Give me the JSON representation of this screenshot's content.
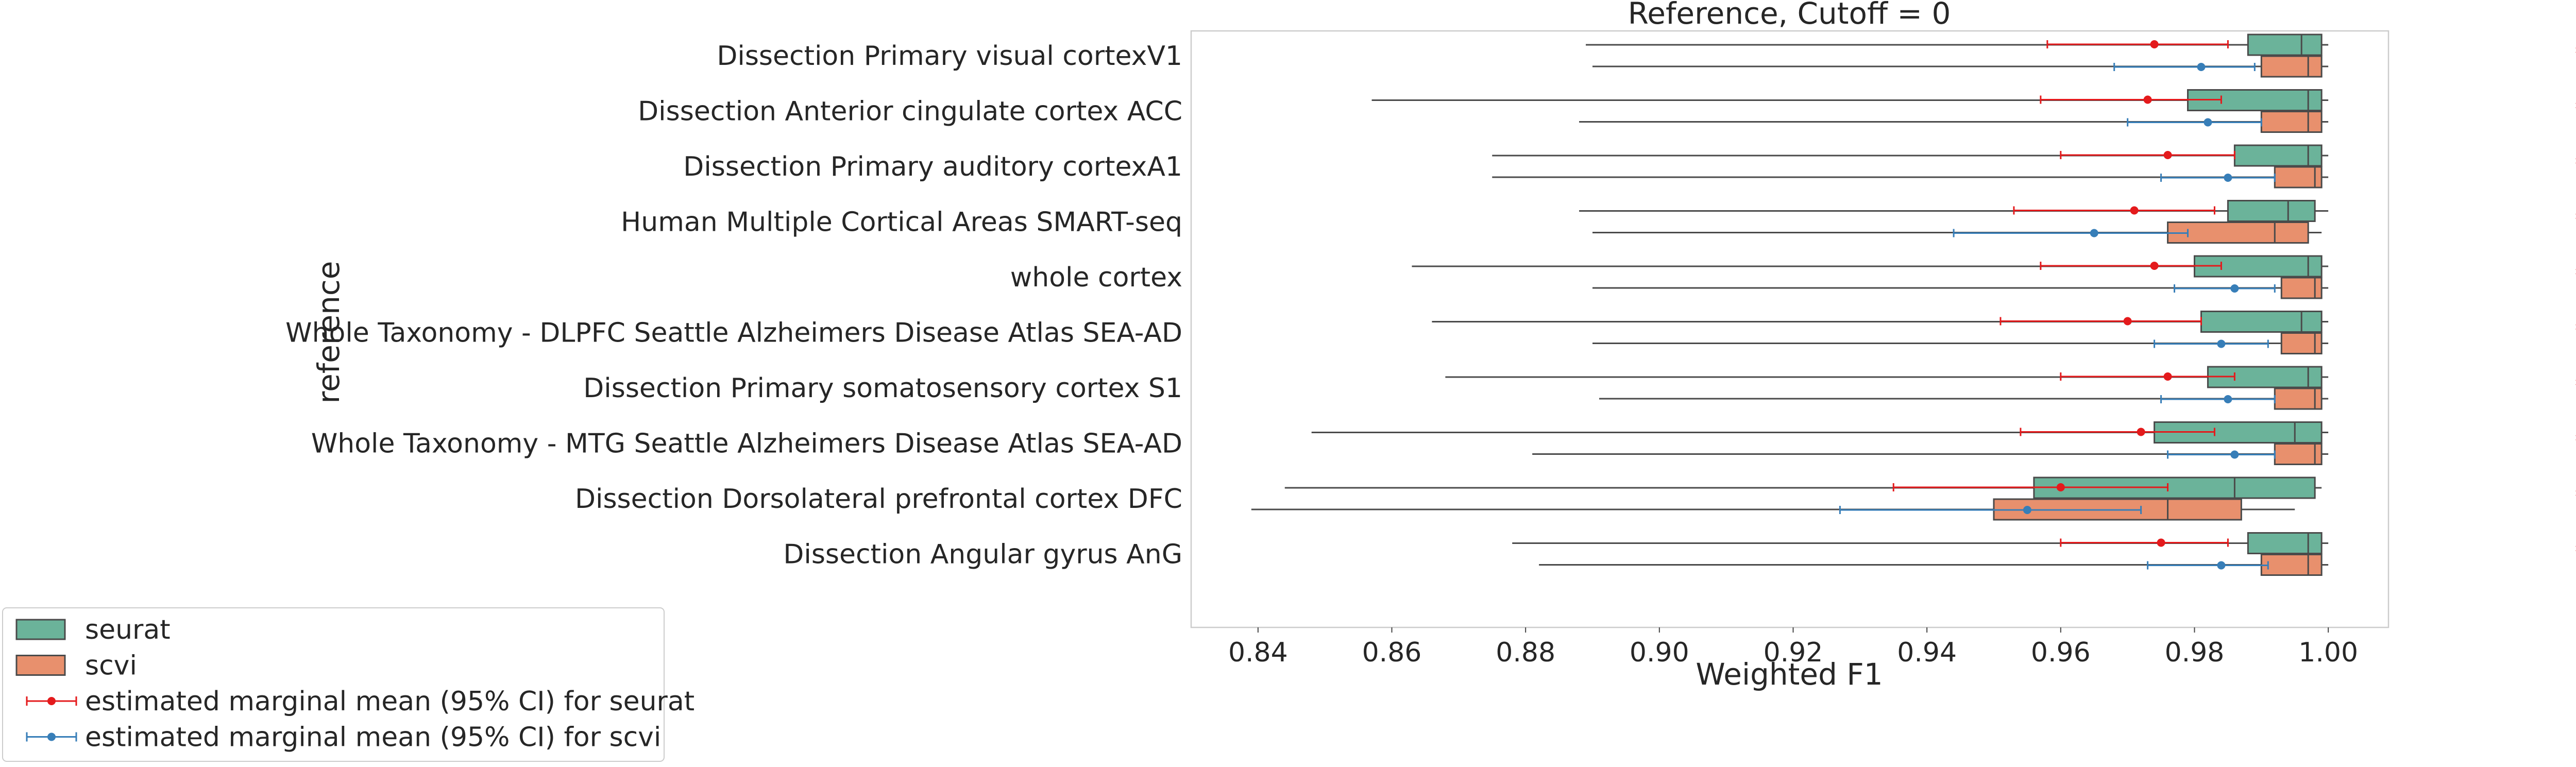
{
  "chart_data": {
    "type": "box",
    "title": "Reference, Cutoff = 0",
    "xlabel": "Weighted F1",
    "ylabel": "reference",
    "xlim": [
      0.83,
      1.009
    ],
    "xticks": [
      "0.84",
      "0.86",
      "0.88",
      "0.90",
      "0.92",
      "0.94",
      "0.96",
      "0.98",
      "1.00"
    ],
    "xtick_values": [
      0.84,
      0.86,
      0.88,
      0.9,
      0.92,
      0.94,
      0.96,
      0.98,
      1.0
    ],
    "grid": false,
    "legend_position": "bottom-left",
    "significance_marker": "*",
    "categories": [
      "Dissection Primary visual cortexV1",
      "Dissection Anterior cingulate cortex ACC",
      "Dissection Primary auditory cortexA1",
      "Human Multiple Cortical Areas SMART-seq",
      "whole cortex",
      "Whole Taxonomy - DLPFC Seattle Alzheimers Disease Atlas SEA-AD",
      "Dissection Primary somatosensory cortex S1",
      "Whole Taxonomy - MTG Seattle Alzheimers Disease Atlas SEA-AD",
      "Dissection Dorsolateral prefrontal cortex DFC",
      "Dissection Angular gyrus AnG"
    ],
    "series": [
      {
        "name": "seurat",
        "color": "#6bb39a",
        "boxes": [
          {
            "whislo": 0.889,
            "q1": 0.988,
            "med": 0.996,
            "q3": 0.999,
            "whishi": 1.0
          },
          {
            "whislo": 0.857,
            "q1": 0.979,
            "med": 0.997,
            "q3": 0.999,
            "whishi": 1.0
          },
          {
            "whislo": 0.875,
            "q1": 0.986,
            "med": 0.997,
            "q3": 0.999,
            "whishi": 1.0
          },
          {
            "whislo": 0.888,
            "q1": 0.985,
            "med": 0.994,
            "q3": 0.998,
            "whishi": 1.0
          },
          {
            "whislo": 0.863,
            "q1": 0.98,
            "med": 0.997,
            "q3": 0.999,
            "whishi": 1.0
          },
          {
            "whislo": 0.866,
            "q1": 0.981,
            "med": 0.996,
            "q3": 0.999,
            "whishi": 1.0
          },
          {
            "whislo": 0.868,
            "q1": 0.982,
            "med": 0.997,
            "q3": 0.999,
            "whishi": 1.0
          },
          {
            "whislo": 0.848,
            "q1": 0.974,
            "med": 0.995,
            "q3": 0.999,
            "whishi": 1.0
          },
          {
            "whislo": 0.844,
            "q1": 0.956,
            "med": 0.986,
            "q3": 0.998,
            "whishi": 0.999
          },
          {
            "whislo": 0.878,
            "q1": 0.988,
            "med": 0.997,
            "q3": 0.999,
            "whishi": 1.0
          }
        ],
        "emm": [
          {
            "mean": 0.974,
            "lo": 0.958,
            "hi": 0.985
          },
          {
            "mean": 0.973,
            "lo": 0.957,
            "hi": 0.984
          },
          {
            "mean": 0.976,
            "lo": 0.96,
            "hi": 0.986
          },
          {
            "mean": 0.971,
            "lo": 0.953,
            "hi": 0.983
          },
          {
            "mean": 0.974,
            "lo": 0.957,
            "hi": 0.984
          },
          {
            "mean": 0.97,
            "lo": 0.951,
            "hi": 0.981
          },
          {
            "mean": 0.976,
            "lo": 0.96,
            "hi": 0.986
          },
          {
            "mean": 0.972,
            "lo": 0.954,
            "hi": 0.983
          },
          {
            "mean": 0.96,
            "lo": 0.935,
            "hi": 0.976
          },
          {
            "mean": 0.975,
            "lo": 0.96,
            "hi": 0.985
          }
        ]
      },
      {
        "name": "scvi",
        "color": "#e8906d",
        "boxes": [
          {
            "whislo": 0.89,
            "q1": 0.99,
            "med": 0.997,
            "q3": 0.999,
            "whishi": 1.0
          },
          {
            "whislo": 0.888,
            "q1": 0.99,
            "med": 0.997,
            "q3": 0.999,
            "whishi": 1.0
          },
          {
            "whislo": 0.875,
            "q1": 0.992,
            "med": 0.998,
            "q3": 0.999,
            "whishi": 1.0
          },
          {
            "whislo": 0.89,
            "q1": 0.976,
            "med": 0.992,
            "q3": 0.997,
            "whishi": 0.999
          },
          {
            "whislo": 0.89,
            "q1": 0.993,
            "med": 0.998,
            "q3": 0.999,
            "whishi": 1.0
          },
          {
            "whislo": 0.89,
            "q1": 0.993,
            "med": 0.998,
            "q3": 0.999,
            "whishi": 1.0
          },
          {
            "whislo": 0.891,
            "q1": 0.992,
            "med": 0.998,
            "q3": 0.999,
            "whishi": 1.0
          },
          {
            "whislo": 0.881,
            "q1": 0.992,
            "med": 0.998,
            "q3": 0.999,
            "whishi": 1.0
          },
          {
            "whislo": 0.839,
            "q1": 0.95,
            "med": 0.976,
            "q3": 0.987,
            "whishi": 0.995
          },
          {
            "whislo": 0.882,
            "q1": 0.99,
            "med": 0.997,
            "q3": 0.999,
            "whishi": 1.0
          }
        ],
        "emm": [
          {
            "mean": 0.981,
            "lo": 0.968,
            "hi": 0.989
          },
          {
            "mean": 0.982,
            "lo": 0.97,
            "hi": 0.99
          },
          {
            "mean": 0.985,
            "lo": 0.975,
            "hi": 0.992
          },
          {
            "mean": 0.965,
            "lo": 0.944,
            "hi": 0.979
          },
          {
            "mean": 0.986,
            "lo": 0.977,
            "hi": 0.992
          },
          {
            "mean": 0.984,
            "lo": 0.974,
            "hi": 0.991
          },
          {
            "mean": 0.985,
            "lo": 0.975,
            "hi": 0.992
          },
          {
            "mean": 0.986,
            "lo": 0.976,
            "hi": 0.992
          },
          {
            "mean": 0.955,
            "lo": 0.927,
            "hi": 0.972
          },
          {
            "mean": 0.984,
            "lo": 0.973,
            "hi": 0.991
          }
        ]
      }
    ],
    "emm_colors": {
      "seurat": "#e41a1c",
      "scvi": "#377eb8"
    },
    "legend": [
      {
        "label": "seurat",
        "kind": "box",
        "color": "#6bb39a"
      },
      {
        "label": "scvi",
        "kind": "box",
        "color": "#e8906d"
      },
      {
        "label": "estimated marginal mean (95% CI) for seurat",
        "kind": "errorbar",
        "color": "#e41a1c"
      },
      {
        "label": "estimated marginal mean (95% CI) for scvi",
        "kind": "errorbar",
        "color": "#377eb8"
      }
    ]
  }
}
